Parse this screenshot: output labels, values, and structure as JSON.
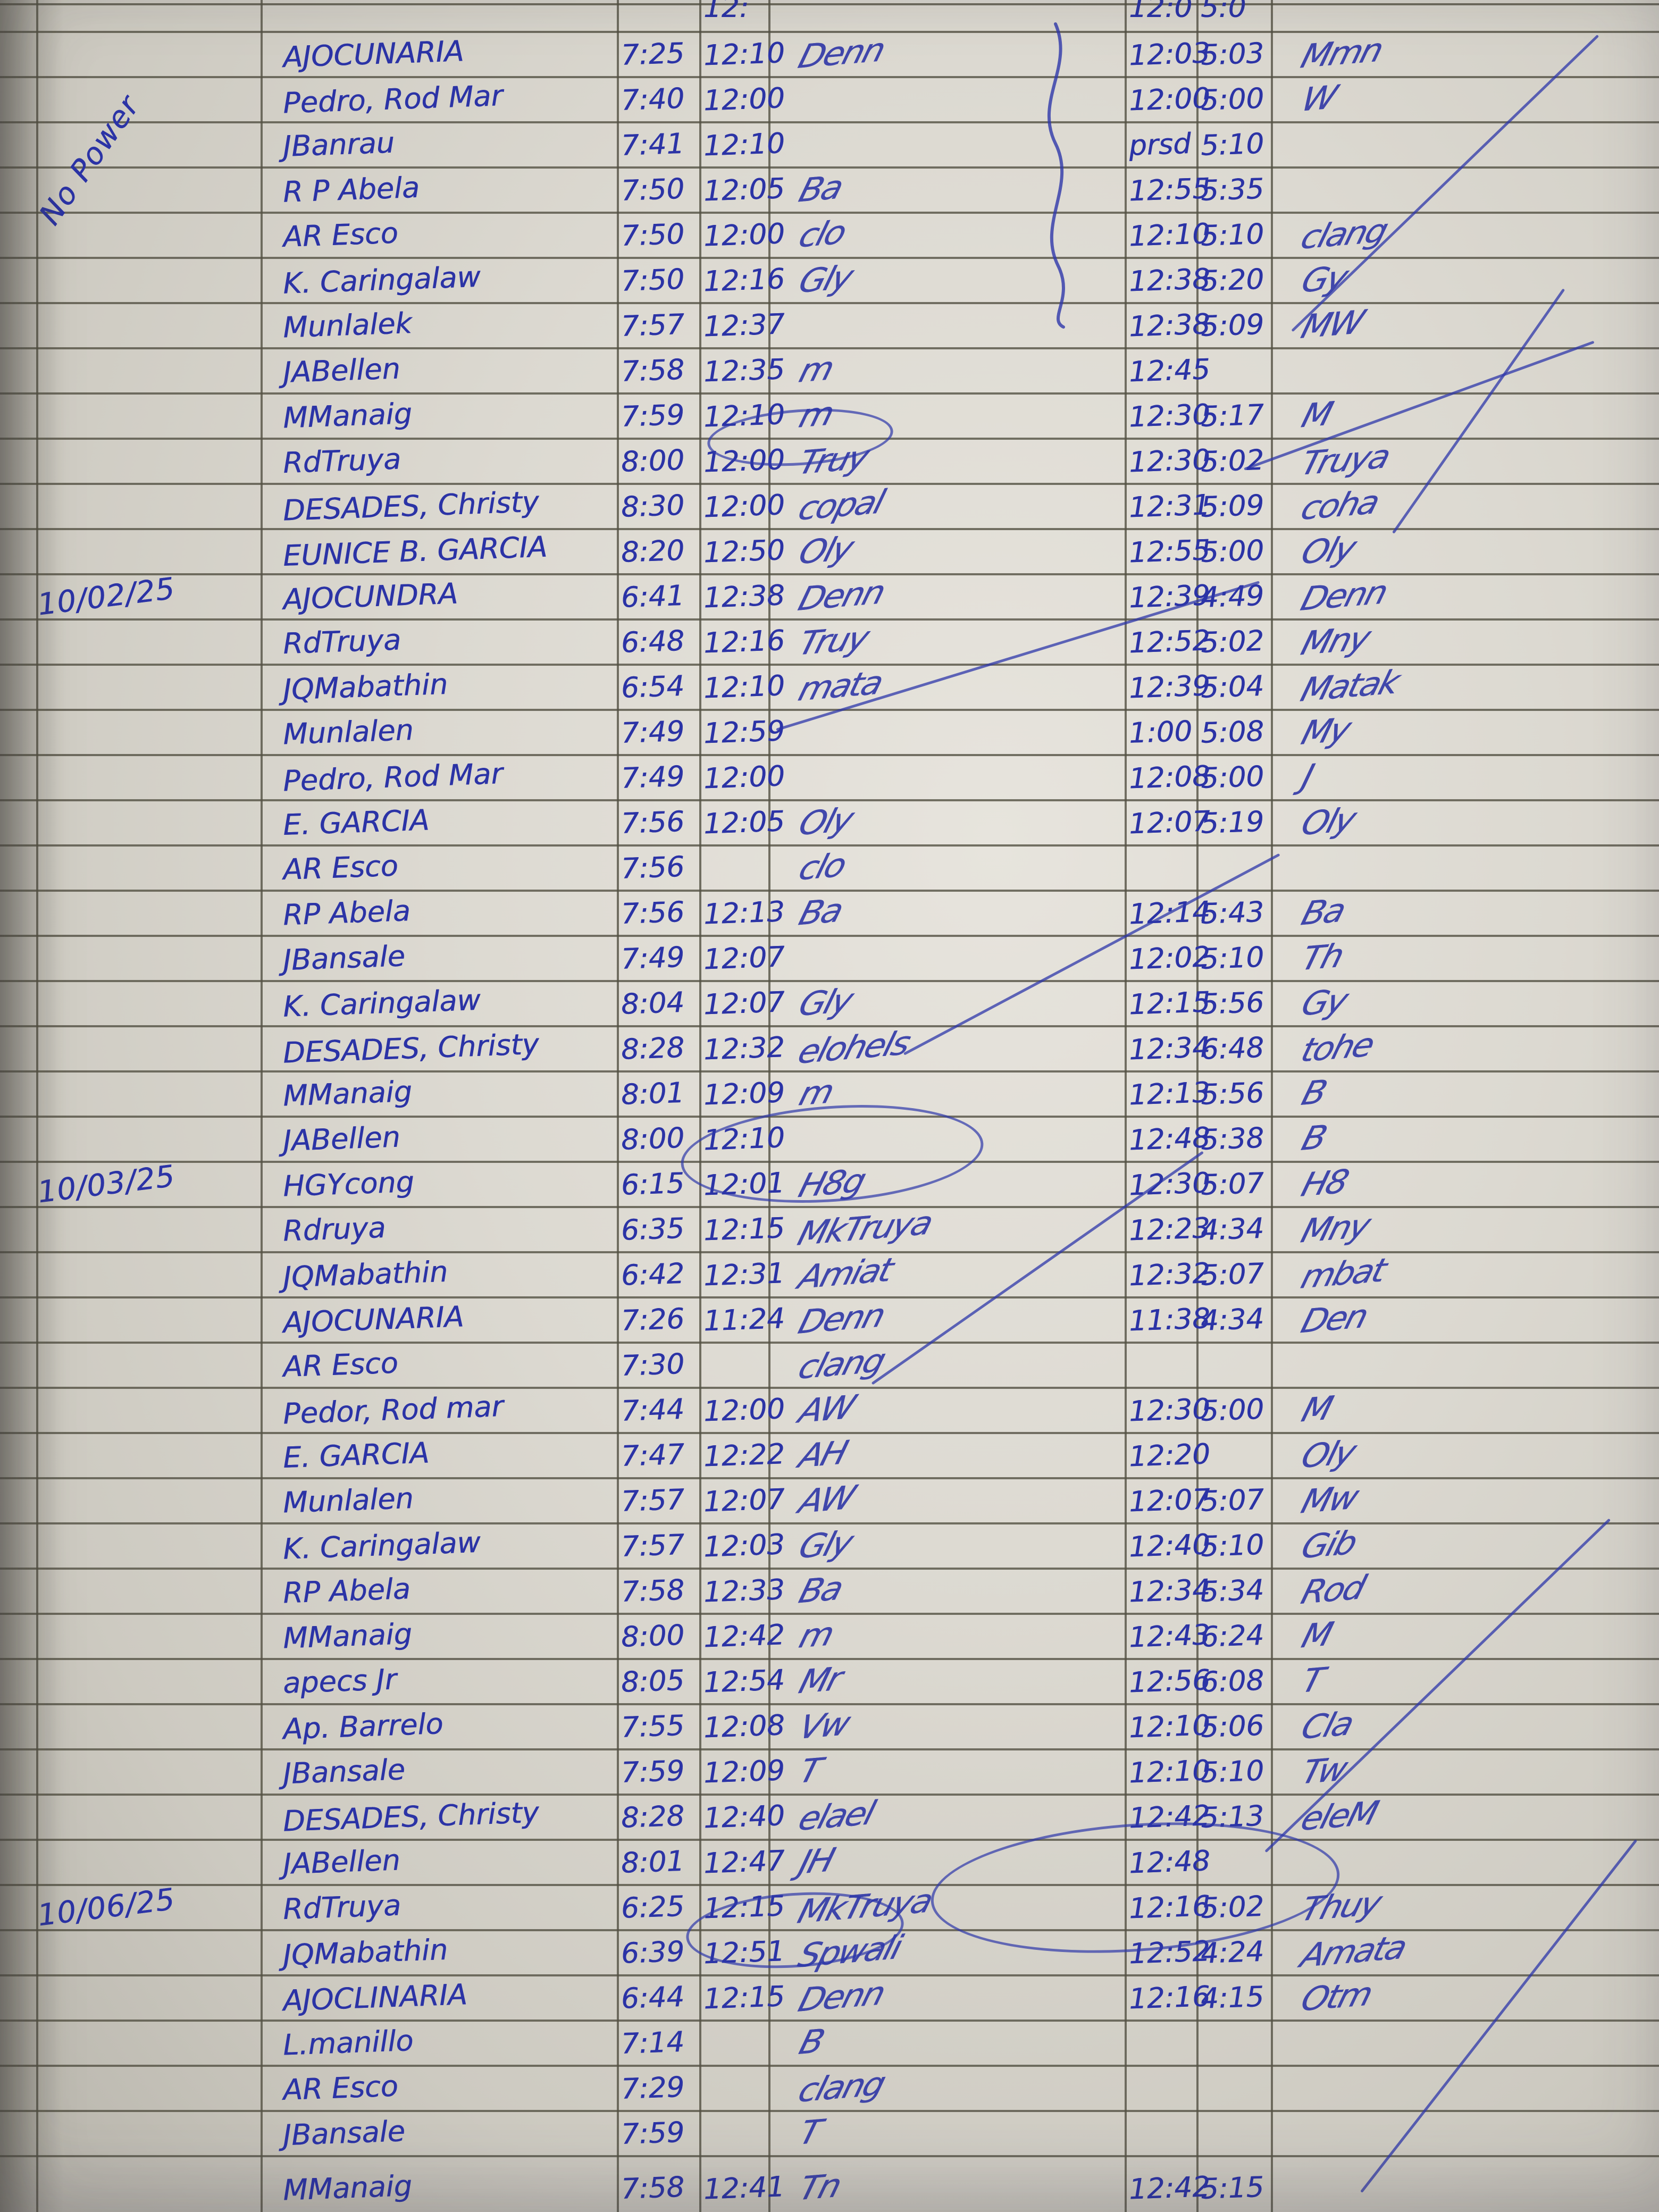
{
  "sheet": {
    "margin_note": "No Power",
    "ink_color": "#2b33a6",
    "dates_present": [
      "10/02/25",
      "10/03/25",
      "10/06/25"
    ]
  },
  "rows": [
    {
      "date": "",
      "name": "",
      "t1": "",
      "t2": "12:",
      "s1": "",
      "t3": "12:0",
      "t4": "5:0",
      "s2": ""
    },
    {
      "date": "",
      "name": "AJOCUNARIA",
      "t1": "7:25",
      "t2": "12:10",
      "s1": "Denn",
      "t3": "12:03",
      "t4": "5:03",
      "s2": "Mmn"
    },
    {
      "date": "",
      "name": "Pedro, Rod Mar",
      "t1": "7:40",
      "t2": "12:00",
      "s1": "",
      "t3": "12:00",
      "t4": "5:00",
      "s2": "W"
    },
    {
      "date": "",
      "name": "JBanrau",
      "t1": "7:41",
      "t2": "12:10",
      "s1": "",
      "t3": "prsd",
      "t4": "5:10",
      "s2": ""
    },
    {
      "date": "",
      "name": "R P Abela",
      "t1": "7:50",
      "t2": "12:05",
      "s1": "Ba",
      "t3": "12:55",
      "t4": "5:35",
      "s2": ""
    },
    {
      "date": "",
      "name": "AR Esco",
      "t1": "7:50",
      "t2": "12:00",
      "s1": "clo",
      "t3": "12:10",
      "t4": "5:10",
      "s2": "clang"
    },
    {
      "date": "",
      "name": "K. Caringalaw",
      "t1": "7:50",
      "t2": "12:16",
      "s1": "Gly",
      "t3": "12:38",
      "t4": "5:20",
      "s2": "Gy"
    },
    {
      "date": "",
      "name": "Munlalek",
      "t1": "7:57",
      "t2": "12:37",
      "s1": "",
      "t3": "12:38",
      "t4": "5:09",
      "s2": "MW"
    },
    {
      "date": "",
      "name": "JABellen",
      "t1": "7:58",
      "t2": "12:35",
      "s1": "m",
      "t3": "12:45",
      "t4": "",
      "s2": ""
    },
    {
      "date": "",
      "name": "MManaig",
      "t1": "7:59",
      "t2": "12:10",
      "s1": "m",
      "t3": "12:30",
      "t4": "5:17",
      "s2": "M"
    },
    {
      "date": "",
      "name": "RdTruya",
      "t1": "8:00",
      "t2": "12:00",
      "s1": "Truy",
      "t3": "12:30",
      "t4": "5:02",
      "s2": "Truya"
    },
    {
      "date": "",
      "name": "DESADES, Christy",
      "t1": "8:30",
      "t2": "12:00",
      "s1": "copal",
      "t3": "12:31",
      "t4": "5:09",
      "s2": "coha"
    },
    {
      "date": "",
      "name": "EUNICE B. GARCIA",
      "t1": "8:20",
      "t2": "12:50",
      "s1": "Oly",
      "t3": "12:55",
      "t4": "5:00",
      "s2": "Oly"
    },
    {
      "date": "10/02/25",
      "name": "AJOCUNDRA",
      "t1": "6:41",
      "t2": "12:38",
      "s1": "Denn",
      "t3": "12:39",
      "t4": "4:49",
      "s2": "Denn"
    },
    {
      "date": "",
      "name": "RdTruya",
      "t1": "6:48",
      "t2": "12:16",
      "s1": "Truy",
      "t3": "12:52",
      "t4": "5:02",
      "s2": "Mny"
    },
    {
      "date": "",
      "name": "JQMabathin",
      "t1": "6:54",
      "t2": "12:10",
      "s1": "mata",
      "t3": "12:39",
      "t4": "5:04",
      "s2": "Matak"
    },
    {
      "date": "",
      "name": "Munlalen",
      "t1": "7:49",
      "t2": "12:59",
      "s1": "",
      "t3": "1:00",
      "t4": "5:08",
      "s2": "My"
    },
    {
      "date": "",
      "name": "Pedro, Rod Mar",
      "t1": "7:49",
      "t2": "12:00",
      "s1": "",
      "t3": "12:08",
      "t4": "5:00",
      "s2": "J"
    },
    {
      "date": "",
      "name": "E. GARCIA",
      "t1": "7:56",
      "t2": "12:05",
      "s1": "Oly",
      "t3": "12:07",
      "t4": "5:19",
      "s2": "Oly"
    },
    {
      "date": "",
      "name": "AR Esco",
      "t1": "7:56",
      "t2": "",
      "s1": "clo",
      "t3": "",
      "t4": "",
      "s2": ""
    },
    {
      "date": "",
      "name": "RP Abela",
      "t1": "7:56",
      "t2": "12:13",
      "s1": "Ba",
      "t3": "12:14",
      "t4": "5:43",
      "s2": "Ba"
    },
    {
      "date": "",
      "name": "JBansale",
      "t1": "7:49",
      "t2": "12:07",
      "s1": "",
      "t3": "12:02",
      "t4": "5:10",
      "s2": "Th"
    },
    {
      "date": "",
      "name": "K. Caringalaw",
      "t1": "8:04",
      "t2": "12:07",
      "s1": "Gly",
      "t3": "12:15",
      "t4": "5:56",
      "s2": "Gy"
    },
    {
      "date": "",
      "name": "DESADES, Christy",
      "t1": "8:28",
      "t2": "12:32",
      "s1": "elohels",
      "t3": "12:34",
      "t4": "6:48",
      "s2": "tohe"
    },
    {
      "date": "",
      "name": "MManaig",
      "t1": "8:01",
      "t2": "12:09",
      "s1": "m",
      "t3": "12:13",
      "t4": "5:56",
      "s2": "B"
    },
    {
      "date": "",
      "name": "JABellen",
      "t1": "8:00",
      "t2": "12:10",
      "s1": "",
      "t3": "12:48",
      "t4": "5:38",
      "s2": "B"
    },
    {
      "date": "10/03/25",
      "name": "HGYcong",
      "t1": "6:15",
      "t2": "12:01",
      "s1": "H8g",
      "t3": "12:30",
      "t4": "5:07",
      "s2": "H8"
    },
    {
      "date": "",
      "name": "Rdruya",
      "t1": "6:35",
      "t2": "12:15",
      "s1": "MkTruya",
      "t3": "12:23",
      "t4": "4:34",
      "s2": "Mny"
    },
    {
      "date": "",
      "name": "JQMabathin",
      "t1": "6:42",
      "t2": "12:31",
      "s1": "Amiat",
      "t3": "12:32",
      "t4": "5:07",
      "s2": "mbat"
    },
    {
      "date": "",
      "name": "AJOCUNARIA",
      "t1": "7:26",
      "t2": "11:24",
      "s1": "Denn",
      "t3": "11:38",
      "t4": "4:34",
      "s2": "Den"
    },
    {
      "date": "",
      "name": "AR Esco",
      "t1": "7:30",
      "t2": "",
      "s1": "clang",
      "t3": "",
      "t4": "",
      "s2": ""
    },
    {
      "date": "",
      "name": "Pedor, Rod mar",
      "t1": "7:44",
      "t2": "12:00",
      "s1": "AW",
      "t3": "12:30",
      "t4": "5:00",
      "s2": "M"
    },
    {
      "date": "",
      "name": "E. GARCIA",
      "t1": "7:47",
      "t2": "12:22",
      "s1": "AH",
      "t3": "12:20",
      "t4": "",
      "s2": "Oly"
    },
    {
      "date": "",
      "name": "Munlalen",
      "t1": "7:57",
      "t2": "12:07",
      "s1": "AW",
      "t3": "12:07",
      "t4": "5:07",
      "s2": "Mw"
    },
    {
      "date": "",
      "name": "K. Caringalaw",
      "t1": "7:57",
      "t2": "12:03",
      "s1": "Gly",
      "t3": "12:40",
      "t4": "5:10",
      "s2": "Gib"
    },
    {
      "date": "",
      "name": "RP Abela",
      "t1": "7:58",
      "t2": "12:33",
      "s1": "Ba",
      "t3": "12:34",
      "t4": "5:34",
      "s2": "Rod"
    },
    {
      "date": "",
      "name": "MManaig",
      "t1": "8:00",
      "t2": "12:42",
      "s1": "m",
      "t3": "12:43",
      "t4": "6:24",
      "s2": "M"
    },
    {
      "date": "",
      "name": "apecs Jr",
      "t1": "8:05",
      "t2": "12:54",
      "s1": "Mr",
      "t3": "12:56",
      "t4": "6:08",
      "s2": "T"
    },
    {
      "date": "",
      "name": "Ap. Barrelo",
      "t1": "7:55",
      "t2": "12:08",
      "s1": "Vw",
      "t3": "12:10",
      "t4": "5:06",
      "s2": "Cla"
    },
    {
      "date": "",
      "name": "JBansale",
      "t1": "7:59",
      "t2": "12:09",
      "s1": "T",
      "t3": "12:10",
      "t4": "5:10",
      "s2": "Tw"
    },
    {
      "date": "",
      "name": "DESADES, Christy",
      "t1": "8:28",
      "t2": "12:40",
      "s1": "elael",
      "t3": "12:42",
      "t4": "5:13",
      "s2": "eleM"
    },
    {
      "date": "",
      "name": "JABellen",
      "t1": "8:01",
      "t2": "12:47",
      "s1": "JH",
      "t3": "12:48",
      "t4": "",
      "s2": ""
    },
    {
      "date": "10/06/25",
      "name": "RdTruya",
      "t1": "6:25",
      "t2": "12:15",
      "s1": "MkTruya",
      "t3": "12:16",
      "t4": "5:02",
      "s2": "Thuy"
    },
    {
      "date": "",
      "name": "JQMabathin",
      "t1": "6:39",
      "t2": "12:51",
      "s1": "Spwali",
      "t3": "12:52",
      "t4": "4:24",
      "s2": "Amata"
    },
    {
      "date": "",
      "name": "AJOCLINARIA",
      "t1": "6:44",
      "t2": "12:15",
      "s1": "Denn",
      "t3": "12:16",
      "t4": "4:15",
      "s2": "Otm"
    },
    {
      "date": "",
      "name": "L.manillo",
      "t1": "7:14",
      "t2": "",
      "s1": "B",
      "t3": "",
      "t4": "",
      "s2": ""
    },
    {
      "date": "",
      "name": "AR Esco",
      "t1": "7:29",
      "t2": "",
      "s1": "clang",
      "t3": "",
      "t4": "",
      "s2": ""
    },
    {
      "date": "",
      "name": "JBansale",
      "t1": "7:59",
      "t2": "",
      "s1": "T",
      "t3": "",
      "t4": "",
      "s2": ""
    },
    {
      "date": "",
      "name": "MManaig",
      "t1": "7:58",
      "t2": "12:41",
      "s1": "Tn",
      "t3": "12:42",
      "t4": "5:15",
      "s2": ""
    }
  ]
}
